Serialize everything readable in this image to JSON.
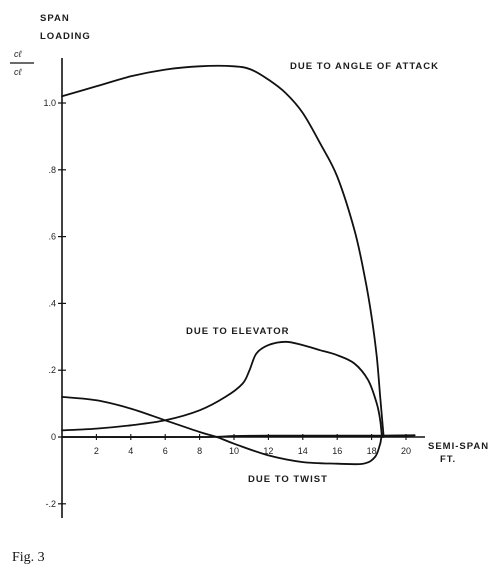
{
  "chart_data": {
    "type": "line",
    "ylabel_lines": [
      "SPAN",
      "LOADING"
    ],
    "ylabel_symbol_num": "cℓ",
    "ylabel_symbol_den": "cℓ",
    "xlabel_lines": [
      "SEMI-SPAN",
      "FT."
    ],
    "caption": "Fig. 3",
    "xlim": [
      0,
      20
    ],
    "ylim": [
      -0.2,
      1.0
    ],
    "x_ticks": [
      2,
      4,
      6,
      8,
      10,
      12,
      14,
      16,
      18,
      20
    ],
    "x_tick_labels": [
      "2",
      "4",
      "6",
      "8",
      "10",
      "12",
      "14",
      "16",
      "18",
      "20"
    ],
    "y_ticks": [
      1.0,
      0.8,
      0.6,
      0.4,
      0.2,
      0,
      -0.2
    ],
    "y_tick_labels": [
      "1.0",
      ".8",
      ".6",
      ".4",
      ".2",
      "0",
      "-.2"
    ],
    "series": [
      {
        "name": "DUE TO ANGLE OF ATTACK",
        "points": [
          [
            0,
            1.02
          ],
          [
            2,
            1.05
          ],
          [
            4,
            1.08
          ],
          [
            6,
            1.1
          ],
          [
            8,
            1.11
          ],
          [
            10,
            1.11
          ],
          [
            11,
            1.1
          ],
          [
            12,
            1.07
          ],
          [
            13,
            1.03
          ],
          [
            14,
            0.97
          ],
          [
            15,
            0.88
          ],
          [
            16,
            0.78
          ],
          [
            17,
            0.62
          ],
          [
            17.6,
            0.48
          ],
          [
            18,
            0.36
          ],
          [
            18.3,
            0.24
          ],
          [
            18.5,
            0.12
          ],
          [
            18.65,
            0.03
          ],
          [
            18.7,
            0.0
          ]
        ]
      },
      {
        "name": "DUE TO ELEVATOR",
        "points": [
          [
            0,
            0.02
          ],
          [
            2,
            0.025
          ],
          [
            4,
            0.035
          ],
          [
            6,
            0.05
          ],
          [
            8,
            0.08
          ],
          [
            9.5,
            0.12
          ],
          [
            10.5,
            0.16
          ],
          [
            10.9,
            0.2
          ],
          [
            11.3,
            0.25
          ],
          [
            12,
            0.275
          ],
          [
            13,
            0.285
          ],
          [
            14,
            0.275
          ],
          [
            15,
            0.26
          ],
          [
            16,
            0.245
          ],
          [
            17,
            0.22
          ],
          [
            17.8,
            0.17
          ],
          [
            18.3,
            0.1
          ],
          [
            18.5,
            0.05
          ],
          [
            18.6,
            0.0
          ]
        ]
      },
      {
        "name": "DUE TO TWIST",
        "points": [
          [
            0,
            0.12
          ],
          [
            2,
            0.11
          ],
          [
            4,
            0.085
          ],
          [
            6,
            0.05
          ],
          [
            8,
            0.015
          ],
          [
            9,
            0.0
          ],
          [
            10,
            -0.02
          ],
          [
            12,
            -0.055
          ],
          [
            14,
            -0.075
          ],
          [
            16,
            -0.08
          ],
          [
            17.5,
            -0.08
          ],
          [
            18.2,
            -0.06
          ],
          [
            18.5,
            -0.02
          ],
          [
            18.6,
            0.0
          ],
          [
            19,
            0.003
          ],
          [
            20.5,
            0.005
          ]
        ]
      },
      {
        "name": "",
        "points": [
          [
            0,
            0.0
          ],
          [
            8,
            0.0
          ],
          [
            10,
            0.003
          ],
          [
            12,
            0.004
          ],
          [
            14,
            0.004
          ],
          [
            16,
            0.004
          ],
          [
            18,
            0.004
          ],
          [
            20.5,
            0.005
          ]
        ]
      }
    ]
  }
}
